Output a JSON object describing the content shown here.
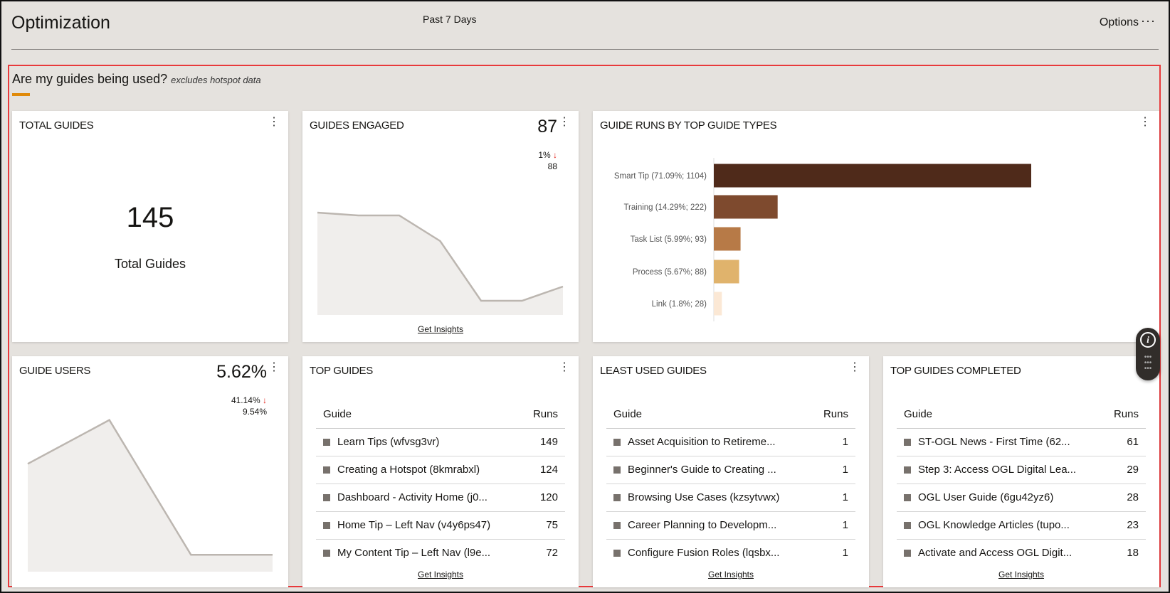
{
  "header": {
    "title": "Optimization",
    "range": "Past 7 Days",
    "options": "Options",
    "more": "···"
  },
  "section": {
    "title": "Are my guides being used?",
    "note": "excludes hotspot data"
  },
  "total_guides": {
    "title": "TOTAL GUIDES",
    "value": "145",
    "label": "Total Guides"
  },
  "guides_engaged": {
    "title": "GUIDES ENGAGED",
    "value": "87",
    "delta": "1%",
    "previous": "88",
    "link": "Get Insights",
    "trend": [
      0.72,
      0.7,
      0.7,
      0.52,
      0.1,
      0.1,
      0.2
    ]
  },
  "guide_users": {
    "title": "GUIDE USERS",
    "value": "5.62%",
    "delta": "41.14%",
    "previous": "9.54%",
    "trend": [
      0.64,
      0.9,
      0.1,
      0.1
    ]
  },
  "chart_data": {
    "type": "bar",
    "title": "GUIDE RUNS BY TOP GUIDE TYPES",
    "categories": [
      "Smart Tip (71.09%; 1104)",
      "Training (14.29%; 222)",
      "Task List (5.99%; 93)",
      "Process (5.67%; 88)",
      "Link (1.8%; 28)"
    ],
    "values": [
      1104,
      222,
      93,
      88,
      28
    ],
    "colors": [
      "#4f2a1a",
      "#7e4a2e",
      "#b77a47",
      "#e0b36c",
      "#fbe8d5"
    ]
  },
  "top_guides": {
    "title": "TOP GUIDES",
    "col1": "Guide",
    "col2": "Runs",
    "link": "Get Insights",
    "rows": [
      [
        "Learn Tips (wfvsg3vr)",
        "149"
      ],
      [
        "Creating a Hotspot (8kmrabxl)",
        "124"
      ],
      [
        "Dashboard - Activity Home (j0...",
        "120"
      ],
      [
        "Home Tip – Left Nav (v4y6ps47)",
        "75"
      ],
      [
        "My Content Tip – Left Nav (l9e...",
        "72"
      ]
    ]
  },
  "least_used": {
    "title": "LEAST USED GUIDES",
    "col1": "Guide",
    "col2": "Runs",
    "link": "Get Insights",
    "rows": [
      [
        "Asset Acquisition to Retireme...",
        "1"
      ],
      [
        "Beginner's Guide to Creating ...",
        "1"
      ],
      [
        "Browsing Use Cases (kzsytvwx)",
        "1"
      ],
      [
        "Career Planning to Developm...",
        "1"
      ],
      [
        "Configure Fusion Roles (lqsbx...",
        "1"
      ]
    ]
  },
  "top_completed": {
    "title": "TOP GUIDES COMPLETED",
    "col1": "Guide",
    "col2": "Runs",
    "link": "Get Insights",
    "rows": [
      [
        "ST-OGL News - First Time (62...",
        "61"
      ],
      [
        "Step 3: Access OGL Digital Lea...",
        "29"
      ],
      [
        "OGL User Guide (6gu42yz6)",
        "28"
      ],
      [
        "OGL Knowledge Articles (tupo...",
        "23"
      ],
      [
        "Activate and Access OGL Digit...",
        "18"
      ]
    ]
  }
}
